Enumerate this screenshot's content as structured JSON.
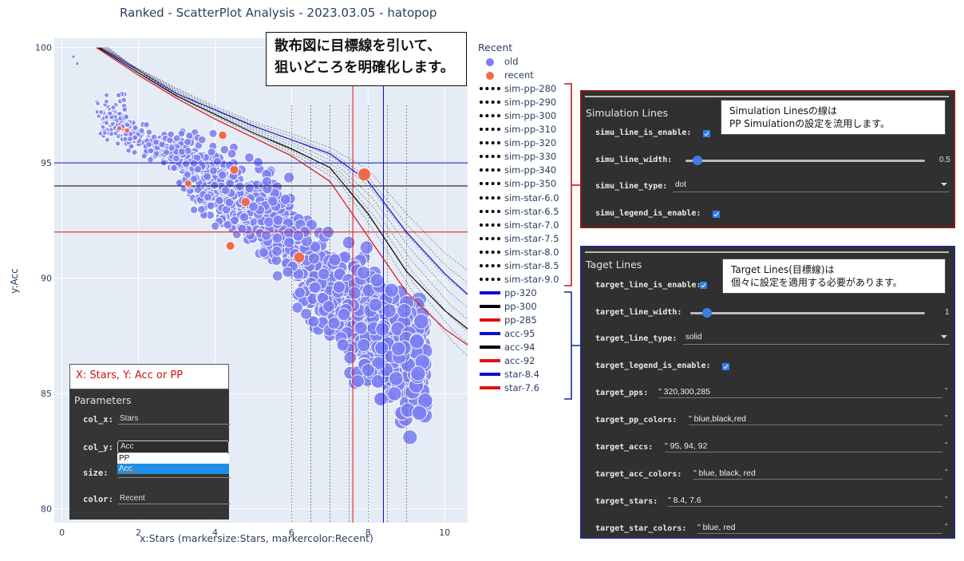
{
  "title": "Ranked - ScatterPlot Analysis - 2023.03.05 - hatopop",
  "xlabel": "x:Stars (markersize:Stars, markercolor:Recent)",
  "ylabel": "y:Acc",
  "callout_main": [
    "散布図に目標線を引いて、",
    "狙いどころを明確化します。"
  ],
  "xy_note": "X: Stars, Y: Acc or PP",
  "parameters": {
    "header": "Parameters",
    "col_x_label": "col_x:",
    "col_x_value": "Stars",
    "col_y_label": "col_y:",
    "col_y_value": "Acc",
    "col_y_options": [
      "PP",
      "Acc"
    ],
    "size_label": "size:",
    "size_value": "Stars",
    "color_label": "color:",
    "color_value": "Recent"
  },
  "legend": {
    "title": "Recent",
    "items": [
      {
        "label": "old",
        "kind": "marker",
        "color": "#7b7ff2"
      },
      {
        "label": "recent",
        "kind": "marker",
        "color": "#ef6a4c"
      },
      {
        "label": "sim-pp-280",
        "kind": "dot",
        "color": "#000000"
      },
      {
        "label": "sim-pp-290",
        "kind": "dot",
        "color": "#000000"
      },
      {
        "label": "sim-pp-300",
        "kind": "dot",
        "color": "#000000"
      },
      {
        "label": "sim-pp-310",
        "kind": "dot",
        "color": "#000000"
      },
      {
        "label": "sim-pp-320",
        "kind": "dot",
        "color": "#000000"
      },
      {
        "label": "sim-pp-330",
        "kind": "dot",
        "color": "#000000"
      },
      {
        "label": "sim-pp-340",
        "kind": "dot",
        "color": "#000000"
      },
      {
        "label": "sim-pp-350",
        "kind": "dot",
        "color": "#000000"
      },
      {
        "label": "sim-star-6.0",
        "kind": "dot",
        "color": "#000000"
      },
      {
        "label": "sim-star-6.5",
        "kind": "dot",
        "color": "#000000"
      },
      {
        "label": "sim-star-7.0",
        "kind": "dot",
        "color": "#000000"
      },
      {
        "label": "sim-star-7.5",
        "kind": "dot",
        "color": "#000000"
      },
      {
        "label": "sim-star-8.0",
        "kind": "dot",
        "color": "#000000"
      },
      {
        "label": "sim-star-8.5",
        "kind": "dot",
        "color": "#000000"
      },
      {
        "label": "sim-star-9.0",
        "kind": "dot",
        "color": "#000000"
      },
      {
        "label": "pp-320",
        "kind": "solid",
        "color": "#0b0bd0"
      },
      {
        "label": "pp-300",
        "kind": "solid",
        "color": "#000000"
      },
      {
        "label": "pp-285",
        "kind": "solid",
        "color": "#e01010"
      },
      {
        "label": "acc-95",
        "kind": "solid",
        "color": "#0b0bd0"
      },
      {
        "label": "acc-94",
        "kind": "solid",
        "color": "#000000"
      },
      {
        "label": "acc-92",
        "kind": "solid",
        "color": "#e01010"
      },
      {
        "label": "star-8.4",
        "kind": "solid",
        "color": "#0b0bd0"
      },
      {
        "label": "star-7.6",
        "kind": "solid",
        "color": "#e01010"
      }
    ]
  },
  "simulation_panel": {
    "title": "Simulation Lines",
    "enable_label": "simu_line_is_enable:",
    "width_label": "simu_line_width:",
    "width_value": "0.5",
    "width_fraction": 0.05,
    "type_label": "simu_line_type:",
    "type_value": "dot",
    "legend_label": "simu_legend_is_enable:",
    "note": [
      "Simulation Linesの線は",
      "PP Simulationの設定を流用します。"
    ]
  },
  "target_panel": {
    "title": "Taget Lines",
    "enable_label": "target_line_is_enable:",
    "width_label": "target_line_width:",
    "width_value": "1",
    "width_fraction": 0.07,
    "type_label": "target_line_type:",
    "type_value": "solid",
    "legend_label": "target_legend_is_enable:",
    "pps_label": "target_pps:",
    "pps_value": "\" 320,300,285",
    "pp_colors_label": "target_pp_colors:",
    "pp_colors_value": "\" blue,black,red",
    "accs_label": "target_accs:",
    "accs_value": "\" 95, 94, 92",
    "acc_colors_label": "target_acc_colors:",
    "acc_colors_value": "\" blue, black, red",
    "stars_label": "target_stars:",
    "stars_value": "\" 8.4, 7.6",
    "star_colors_label": "target_star_colors:",
    "star_colors_value": "\" blue, red",
    "quote_end": "\"",
    "note": [
      "Target Lines(目標線)は",
      "個々に設定を適用する必要があります。"
    ]
  },
  "chart_data": {
    "type": "scatter",
    "title": "Ranked - ScatterPlot Analysis - 2023.03.05 - hatopop",
    "xlabel": "x:Stars (markersize:Stars, markercolor:Recent)",
    "ylabel": "y:Acc",
    "xlim": [
      -0.2,
      10.6
    ],
    "ylim": [
      79.4,
      100.4
    ],
    "xticks": [
      0,
      2,
      4,
      6,
      8,
      10
    ],
    "yticks": [
      80,
      85,
      90,
      95,
      100
    ],
    "colors": {
      "old": "#7b7ff2",
      "recent": "#ef6a4c",
      "plot_bg": "#e5ecf6",
      "grid": "#ffffff"
    },
    "recent_points": [
      [
        1.5,
        96.5
      ],
      [
        1.7,
        96.4
      ],
      [
        3.3,
        94.1
      ],
      [
        4.2,
        96.2
      ],
      [
        4.5,
        94.7
      ],
      [
        4.8,
        93.3
      ],
      [
        4.4,
        91.4
      ],
      [
        6.2,
        90.9
      ],
      [
        7.9,
        94.5
      ]
    ],
    "target_hlines": [
      {
        "y": 95,
        "color": "#0b0bd0"
      },
      {
        "y": 94,
        "color": "#000000"
      },
      {
        "y": 92,
        "color": "#e01010"
      }
    ],
    "target_vlines": [
      {
        "x": 8.4,
        "color": "#0b0bd0"
      },
      {
        "x": 7.6,
        "color": "#e01010"
      }
    ],
    "sim_star_vlines": [
      6.0,
      6.5,
      7.0,
      7.5,
      8.0,
      8.5,
      9.0
    ],
    "target_pp_curves": [
      {
        "name": "pp-320",
        "color": "#0b0bd0",
        "points": [
          [
            1.0,
            100
          ],
          [
            2,
            99.0
          ],
          [
            3,
            98.0
          ],
          [
            4,
            97.3
          ],
          [
            5,
            96.6
          ],
          [
            6,
            96.0
          ],
          [
            7,
            95.4
          ],
          [
            8,
            94.2
          ],
          [
            9,
            92.0
          ],
          [
            10,
            90.2
          ],
          [
            10.6,
            89.3
          ]
        ]
      },
      {
        "name": "pp-300",
        "color": "#000000",
        "points": [
          [
            0.95,
            100
          ],
          [
            2,
            98.9
          ],
          [
            3,
            97.9
          ],
          [
            4,
            97.1
          ],
          [
            5,
            96.3
          ],
          [
            6,
            95.6
          ],
          [
            7,
            94.8
          ],
          [
            8,
            92.8
          ],
          [
            9,
            90.3
          ],
          [
            10,
            88.6
          ],
          [
            10.6,
            87.8
          ]
        ]
      },
      {
        "name": "pp-285",
        "color": "#e01010",
        "points": [
          [
            0.9,
            100
          ],
          [
            2,
            98.8
          ],
          [
            3,
            97.8
          ],
          [
            4,
            96.9
          ],
          [
            5,
            96.1
          ],
          [
            6,
            95.3
          ],
          [
            7,
            94.2
          ],
          [
            8,
            91.8
          ],
          [
            9,
            89.4
          ],
          [
            10,
            87.8
          ],
          [
            10.6,
            87.1
          ]
        ]
      }
    ]
  }
}
